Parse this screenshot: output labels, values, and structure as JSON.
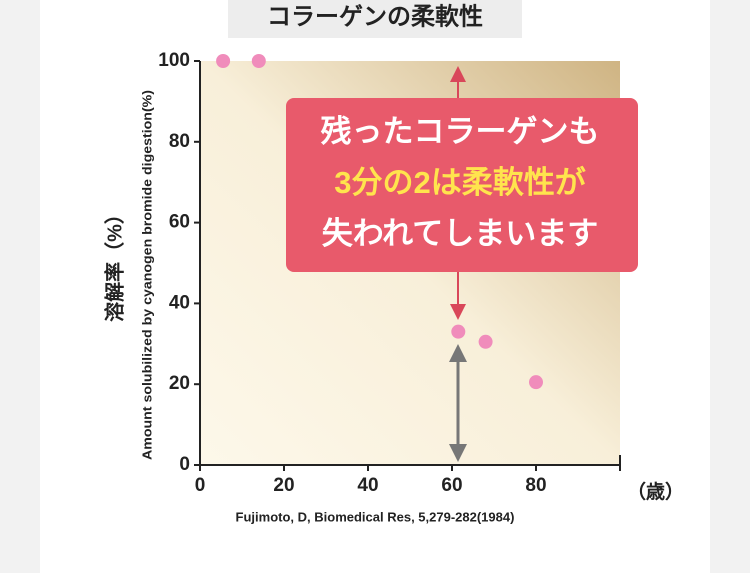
{
  "chart_data": {
    "type": "scatter",
    "title": "コラーゲンの柔軟性",
    "ylabel": "溶解率（%）",
    "ylabel_en": "Amount solubilized by cyanogen bromide digestion(%)",
    "xlabel": "（歳）",
    "source": "Fujimoto, D, Biomedical Res, 5,279-282(1984)",
    "annotations": [
      "残ったコラーゲンも",
      "3分の2は柔軟性が",
      "失われてしまいます"
    ],
    "x": [
      5.5,
      14,
      61.5,
      68,
      80
    ],
    "values": [
      100,
      100,
      33,
      30.5,
      20.5
    ],
    "color": "#f08cbb",
    "xlim": [
      0,
      100
    ],
    "xticks": [
      0,
      20,
      40,
      60,
      80
    ],
    "ylim": [
      0,
      100
    ],
    "yticks": [
      0,
      20,
      40,
      60,
      80,
      100
    ]
  }
}
